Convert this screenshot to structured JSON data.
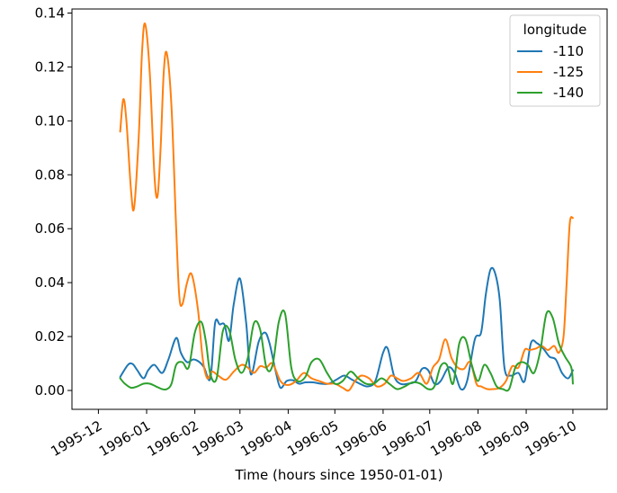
{
  "chart_data": {
    "type": "line",
    "xlabel": "Time (hours since 1950-01-01)",
    "ylabel": "",
    "grid": false,
    "legend": {
      "title": "longitude",
      "placement": "top-right"
    },
    "xlim": [
      "1995-11-14",
      "1996-10-23"
    ],
    "ylim": [
      -0.007,
      0.1415
    ],
    "x_ticks": [
      "1995-12-01",
      "1996-01-01",
      "1996-02-01",
      "1996-03-01",
      "1996-04-01",
      "1996-05-01",
      "1996-06-01",
      "1996-07-01",
      "1996-08-01",
      "1996-09-01",
      "1996-10-01"
    ],
    "x_tick_labels": [
      "1995-12",
      "1996-01",
      "1996-02",
      "1996-03",
      "1996-04",
      "1996-05",
      "1996-06",
      "1996-07",
      "1996-08",
      "1996-09",
      "1996-10"
    ],
    "y_ticks": [
      0.0,
      0.02,
      0.04,
      0.06,
      0.08,
      0.1,
      0.12,
      0.14
    ],
    "y_tick_labels": [
      "0.00",
      "0.02",
      "0.04",
      "0.06",
      "0.08",
      "0.10",
      "0.12",
      "0.14"
    ],
    "series": [
      {
        "name": "-110",
        "color": "#1f77b4",
        "x": [
          "1995-12-15",
          "1995-12-20",
          "1995-12-23",
          "1995-12-26",
          "1995-12-30",
          "1996-01-02",
          "1996-01-06",
          "1996-01-11",
          "1996-01-15",
          "1996-01-20",
          "1996-01-23",
          "1996-01-27",
          "1996-01-31",
          "1996-02-04",
          "1996-02-07",
          "1996-02-11",
          "1996-02-14",
          "1996-02-17",
          "1996-02-20",
          "1996-02-23",
          "1996-02-26",
          "1996-03-01",
          "1996-03-05",
          "1996-03-08",
          "1996-03-13",
          "1996-03-17",
          "1996-03-20",
          "1996-03-24",
          "1996-03-27",
          "1996-03-31",
          "1996-04-04",
          "1996-04-08",
          "1996-04-12",
          "1996-04-17",
          "1996-04-22",
          "1996-04-27",
          "1996-05-02",
          "1996-05-07",
          "1996-05-12",
          "1996-05-17",
          "1996-05-22",
          "1996-05-27",
          "1996-06-01",
          "1996-06-04",
          "1996-06-08",
          "1996-06-12",
          "1996-06-17",
          "1996-06-22",
          "1996-06-26",
          "1996-06-30",
          "1996-07-04",
          "1996-07-08",
          "1996-07-13",
          "1996-07-17",
          "1996-07-21",
          "1996-07-25",
          "1996-07-30",
          "1996-08-03",
          "1996-08-06",
          "1996-08-09",
          "1996-08-12",
          "1996-08-15",
          "1996-08-18",
          "1996-08-22",
          "1996-08-27",
          "1996-08-31",
          "1996-09-04",
          "1996-09-08",
          "1996-09-12",
          "1996-09-16",
          "1996-09-20",
          "1996-09-24",
          "1996-09-28",
          "1996-10-01"
        ],
        "values": [
          0.005,
          0.0095,
          0.0098,
          0.0075,
          0.0045,
          0.0075,
          0.0095,
          0.0065,
          0.0115,
          0.0195,
          0.014,
          0.0105,
          0.0115,
          0.0105,
          0.0085,
          0.0045,
          0.025,
          0.0245,
          0.0245,
          0.0185,
          0.032,
          0.0415,
          0.025,
          0.006,
          0.018,
          0.0215,
          0.0175,
          0.007,
          0.001,
          0.0035,
          0.0038,
          0.0025,
          0.003,
          0.003,
          0.0025,
          0.0025,
          0.004,
          0.0055,
          0.004,
          0.0025,
          0.0015,
          0.0035,
          0.014,
          0.0155,
          0.0055,
          0.0025,
          0.0025,
          0.0035,
          0.008,
          0.0075,
          0.0025,
          0.0035,
          0.0085,
          0.0065,
          0.0005,
          0.0035,
          0.019,
          0.0215,
          0.0355,
          0.0448,
          0.0435,
          0.0335,
          0.0085,
          0.0055,
          0.0065,
          0.0035,
          0.0175,
          0.0175,
          0.0155,
          0.0125,
          0.0115,
          0.0065,
          0.0045,
          0.0075
        ]
      },
      {
        "name": "-125",
        "color": "#ff7f0e",
        "x": [
          "1995-12-15",
          "1995-12-17",
          "1995-12-19",
          "1995-12-22",
          "1995-12-24",
          "1995-12-27",
          "1995-12-29",
          "1995-12-31",
          "1996-01-03",
          "1996-01-06",
          "1996-01-08",
          "1996-01-10",
          "1996-01-12",
          "1996-01-14",
          "1996-01-17",
          "1996-01-20",
          "1996-01-22",
          "1996-01-24",
          "1996-01-27",
          "1996-01-30",
          "1996-02-03",
          "1996-02-06",
          "1996-02-09",
          "1996-02-12",
          "1996-02-16",
          "1996-02-21",
          "1996-02-26",
          "1996-03-02",
          "1996-03-06",
          "1996-03-10",
          "1996-03-14",
          "1996-03-18",
          "1996-03-22",
          "1996-03-27",
          "1996-04-01",
          "1996-04-06",
          "1996-04-11",
          "1996-04-16",
          "1996-04-21",
          "1996-04-26",
          "1996-05-01",
          "1996-05-06",
          "1996-05-10",
          "1996-05-14",
          "1996-05-18",
          "1996-05-23",
          "1996-05-28",
          "1996-06-02",
          "1996-06-06",
          "1996-06-10",
          "1996-06-14",
          "1996-06-19",
          "1996-06-24",
          "1996-06-29",
          "1996-07-03",
          "1996-07-07",
          "1996-07-11",
          "1996-07-15",
          "1996-07-19",
          "1996-07-23",
          "1996-07-27",
          "1996-07-31",
          "1996-08-03",
          "1996-08-07",
          "1996-08-11",
          "1996-08-15",
          "1996-08-19",
          "1996-08-23",
          "1996-08-27",
          "1996-08-31",
          "1996-09-03",
          "1996-09-07",
          "1996-09-11",
          "1996-09-15",
          "1996-09-19",
          "1996-09-22",
          "1996-09-25",
          "1996-09-27",
          "1996-09-29",
          "1996-10-01"
        ],
        "values": [
          0.096,
          0.108,
          0.1,
          0.074,
          0.068,
          0.095,
          0.125,
          0.136,
          0.118,
          0.08,
          0.072,
          0.09,
          0.118,
          0.125,
          0.105,
          0.06,
          0.035,
          0.032,
          0.04,
          0.043,
          0.03,
          0.012,
          0.0045,
          0.007,
          0.0055,
          0.004,
          0.007,
          0.0095,
          0.0085,
          0.0065,
          0.009,
          0.0085,
          0.01,
          0.0035,
          0.002,
          0.0035,
          0.0065,
          0.0045,
          0.0035,
          0.0025,
          0.0025,
          0.001,
          0.0,
          0.0035,
          0.0055,
          0.0045,
          0.0015,
          0.0025,
          0.0055,
          0.0045,
          0.0035,
          0.0045,
          0.0065,
          0.0025,
          0.0085,
          0.0115,
          0.019,
          0.012,
          0.0085,
          0.008,
          0.0105,
          0.0025,
          0.0015,
          0.0005,
          0.0005,
          0.001,
          0.0035,
          0.009,
          0.0085,
          0.015,
          0.015,
          0.0155,
          0.0165,
          0.015,
          0.0165,
          0.014,
          0.02,
          0.04,
          0.062,
          0.064
        ]
      },
      {
        "name": "-140",
        "color": "#2ca02c",
        "x": [
          "1995-12-15",
          "1995-12-18",
          "1995-12-22",
          "1995-12-26",
          "1995-12-30",
          "1996-01-03",
          "1996-01-07",
          "1996-01-11",
          "1996-01-14",
          "1996-01-17",
          "1996-01-20",
          "1996-01-24",
          "1996-01-28",
          "1996-02-01",
          "1996-02-05",
          "1996-02-08",
          "1996-02-11",
          "1996-02-15",
          "1996-02-19",
          "1996-02-23",
          "1996-02-27",
          "1996-03-02",
          "1996-03-06",
          "1996-03-10",
          "1996-03-14",
          "1996-03-18",
          "1996-03-22",
          "1996-03-26",
          "1996-03-30",
          "1996-04-03",
          "1996-04-07",
          "1996-04-12",
          "1996-04-16",
          "1996-04-21",
          "1996-04-26",
          "1996-05-01",
          "1996-05-06",
          "1996-05-11",
          "1996-05-16",
          "1996-05-21",
          "1996-05-26",
          "1996-05-31",
          "1996-06-05",
          "1996-06-10",
          "1996-06-15",
          "1996-06-20",
          "1996-06-25",
          "1996-06-30",
          "1996-07-04",
          "1996-07-08",
          "1996-07-12",
          "1996-07-16",
          "1996-07-20",
          "1996-07-24",
          "1996-07-28",
          "1996-08-01",
          "1996-08-05",
          "1996-08-09",
          "1996-08-13",
          "1996-08-17",
          "1996-08-21",
          "1996-08-25",
          "1996-08-29",
          "1996-09-02",
          "1996-09-06",
          "1996-09-10",
          "1996-09-14",
          "1996-09-18",
          "1996-09-22",
          "1996-09-26",
          "1996-09-30",
          "1996-10-01"
        ],
        "values": [
          0.0045,
          0.0025,
          0.001,
          0.0015,
          0.0025,
          0.0025,
          0.0015,
          0.0005,
          0.0005,
          0.0025,
          0.0095,
          0.0105,
          0.0085,
          0.0215,
          0.0255,
          0.0185,
          0.006,
          0.0045,
          0.022,
          0.0225,
          0.0115,
          0.0065,
          0.012,
          0.025,
          0.0225,
          0.0085,
          0.0095,
          0.0255,
          0.0285,
          0.0085,
          0.0035,
          0.005,
          0.0105,
          0.0115,
          0.0065,
          0.0025,
          0.0035,
          0.007,
          0.0045,
          0.0025,
          0.0025,
          0.0045,
          0.0025,
          0.0005,
          0.0015,
          0.003,
          0.0025,
          0.0005,
          0.0015,
          0.009,
          0.0095,
          0.0025,
          0.0175,
          0.019,
          0.0095,
          0.0035,
          0.0095,
          0.0065,
          0.0015,
          0.0005,
          0.0005,
          0.0085,
          0.0105,
          0.0095,
          0.0065,
          0.0145,
          0.0285,
          0.027,
          0.0175,
          0.0125,
          0.0085,
          0.0025
        ]
      }
    ]
  }
}
